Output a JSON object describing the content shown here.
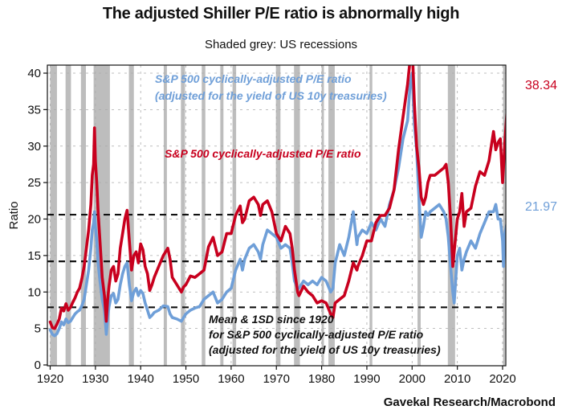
{
  "header": {
    "title": "The adjusted Shiller P/E ratio is abnormally high",
    "subtitle": "Shaded grey: US recessions"
  },
  "footer": {
    "source": "Gavekal Research/Macrobond"
  },
  "colors": {
    "red_series": "#c8001e",
    "blue_series": "#6f9fd8",
    "recession": "#bdbdbd",
    "mean_lines": "#111111"
  },
  "chart_data": {
    "type": "line",
    "title": "The adjusted Shiller P/E ratio is abnormally high",
    "subtitle": "Shaded grey: US recessions",
    "xlabel": "",
    "ylabel": "Ratio",
    "xlim": [
      1919.5,
      2022.8
    ],
    "ylim": [
      0,
      41
    ],
    "x_ticks": [
      1920,
      1930,
      1940,
      1950,
      1960,
      1970,
      1980,
      1990,
      2000,
      2010,
      2020
    ],
    "y_ticks": [
      0,
      5,
      10,
      15,
      20,
      25,
      30,
      35,
      40
    ],
    "grid": true,
    "recessions": [
      [
        1920.0,
        1921.5
      ],
      [
        1923.4,
        1924.6
      ],
      [
        1926.8,
        1927.9
      ],
      [
        1929.6,
        1933.2
      ],
      [
        1937.4,
        1938.5
      ],
      [
        1945.1,
        1945.8
      ],
      [
        1948.9,
        1949.8
      ],
      [
        1953.5,
        1954.3
      ],
      [
        1957.6,
        1958.3
      ],
      [
        1960.3,
        1961.1
      ],
      [
        1969.9,
        1970.9
      ],
      [
        1973.9,
        1975.2
      ],
      [
        1980.0,
        1980.5
      ],
      [
        1981.5,
        1982.9
      ],
      [
        1990.6,
        1991.2
      ],
      [
        2001.2,
        2001.9
      ],
      [
        2007.9,
        2009.5
      ],
      [
        2020.1,
        2020.4
      ]
    ],
    "reference_lines": {
      "label": "Mean & 1SD since 1920 for S&P 500 cyclically-adjusted P/E ratio (adjusted for the yield of US 10y treasuries)",
      "values": [
        7.9,
        14.2,
        20.6
      ]
    },
    "annotations": {
      "blue_label_line1": "S&P 500 cyclically-adjusted P/E ratio",
      "blue_label_line2": "(adjusted for the yield of US 10y treasuries)",
      "red_label": "S&P 500 cyclically-adjusted P/E ratio",
      "mean_label_line1": "Mean & 1SD since 1920",
      "mean_label_line2": "for S&P 500 cyclically-adjusted P/E ratio",
      "mean_label_line3": "(adjusted for the yield of US 10y treasuries)"
    },
    "series": [
      {
        "name": "S&P 500 cyclically-adjusted P/E ratio",
        "color": "#c8001e",
        "end_label": "38.34",
        "x": [
          1920.0,
          1920.5,
          1921.0,
          1921.5,
          1922.0,
          1922.5,
          1923.0,
          1923.5,
          1924.0,
          1924.5,
          1925.0,
          1925.5,
          1926.0,
          1926.5,
          1927.0,
          1927.5,
          1928.0,
          1928.5,
          1929.0,
          1929.3,
          1929.6,
          1929.8,
          1930.0,
          1930.3,
          1930.6,
          1931.0,
          1931.5,
          1932.0,
          1932.4,
          1932.7,
          1933.0,
          1933.5,
          1934.0,
          1934.5,
          1935.0,
          1935.5,
          1936.0,
          1936.5,
          1937.0,
          1937.5,
          1938.0,
          1938.5,
          1939.0,
          1939.5,
          1940.0,
          1940.5,
          1941.0,
          1941.5,
          1942.0,
          1942.5,
          1943.0,
          1944.0,
          1945.0,
          1946.0,
          1946.5,
          1947.0,
          1948.0,
          1949.0,
          1949.5,
          1950.0,
          1951.0,
          1952.0,
          1953.0,
          1954.0,
          1955.0,
          1956.0,
          1957.0,
          1958.0,
          1959.0,
          1960.0,
          1961.0,
          1962.0,
          1962.5,
          1963.0,
          1964.0,
          1965.0,
          1966.0,
          1966.5,
          1967.0,
          1968.0,
          1969.0,
          1970.0,
          1971.0,
          1972.0,
          1973.0,
          1973.5,
          1974.0,
          1974.7,
          1975.0,
          1976.0,
          1977.0,
          1978.0,
          1979.0,
          1980.0,
          1981.0,
          1982.0,
          1982.5,
          1983.0,
          1984.0,
          1985.0,
          1986.0,
          1987.0,
          1987.8,
          1988.0,
          1989.0,
          1990.0,
          1991.0,
          1992.0,
          1993.0,
          1994.0,
          1995.0,
          1996.0,
          1997.0,
          1998.0,
          1999.0,
          1999.5,
          2000.0,
          2000.5,
          2001.0,
          2001.5,
          2002.0,
          2002.5,
          2003.0,
          2003.5,
          2004.0,
          2005.0,
          2006.0,
          2007.0,
          2007.5,
          2008.0,
          2008.5,
          2009.0,
          2009.3,
          2010.0,
          2010.5,
          2011.0,
          2011.5,
          2012.0,
          2013.0,
          2014.0,
          2015.0,
          2016.0,
          2017.0,
          2018.0,
          2018.5,
          2019.0,
          2019.5,
          2020.0,
          2020.2,
          2020.5,
          2021.0,
          2021.5,
          2021.9
        ],
        "y": [
          5.9,
          5.1,
          5.0,
          5.6,
          6.3,
          7.8,
          7.4,
          8.4,
          7.5,
          7.9,
          8.6,
          9.2,
          10.0,
          10.5,
          11.8,
          13.5,
          16.0,
          18.5,
          22.0,
          26.0,
          27.5,
          32.5,
          28.0,
          25.0,
          21.0,
          17.0,
          12.0,
          9.5,
          6.0,
          9.0,
          10.8,
          13.0,
          13.5,
          11.5,
          12.5,
          16.0,
          18.0,
          20.0,
          21.2,
          17.0,
          13.0,
          15.0,
          15.5,
          14.0,
          16.6,
          15.8,
          13.5,
          12.5,
          10.2,
          11.0,
          12.0,
          13.5,
          15.0,
          16.0,
          14.5,
          12.0,
          11.0,
          10.0,
          10.7,
          11.0,
          12.2,
          12.0,
          12.5,
          13.0,
          16.2,
          17.5,
          15.0,
          15.5,
          18.0,
          18.0,
          20.5,
          21.8,
          19.5,
          20.0,
          22.5,
          23.0,
          22.0,
          20.5,
          22.0,
          22.5,
          21.0,
          18.0,
          17.0,
          19.0,
          18.0,
          16.0,
          13.0,
          10.0,
          9.5,
          10.8,
          10.0,
          9.5,
          8.5,
          8.8,
          8.5,
          7.0,
          6.5,
          8.5,
          9.0,
          9.5,
          11.5,
          14.0,
          13.0,
          13.5,
          15.0,
          17.0,
          17.0,
          19.5,
          20.5,
          20.5,
          21.5,
          24.0,
          29.5,
          34.0,
          38.5,
          41.5,
          44.0,
          36.0,
          30.0,
          27.0,
          23.0,
          22.0,
          23.0,
          25.0,
          26.0,
          26.0,
          26.5,
          27.0,
          27.5,
          25.0,
          20.0,
          13.5,
          15.5,
          20.0,
          21.0,
          23.5,
          19.0,
          21.0,
          21.5,
          24.5,
          26.5,
          26.0,
          28.0,
          32.0,
          29.5,
          30.5,
          31.0,
          25.0,
          27.0,
          30.5,
          35.0,
          37.0,
          38.3
        ]
      },
      {
        "name": "S&P 500 cyclically-adjusted P/E ratio (adjusted for the yield of US 10y treasuries)",
        "color": "#6f9fd8",
        "end_label": "21.97",
        "x": [
          1920.0,
          1920.5,
          1921.0,
          1921.5,
          1922.0,
          1922.5,
          1923.0,
          1923.5,
          1924.0,
          1924.5,
          1925.0,
          1925.5,
          1926.0,
          1926.5,
          1927.0,
          1927.5,
          1928.0,
          1928.5,
          1929.0,
          1929.3,
          1929.6,
          1929.8,
          1930.0,
          1930.3,
          1930.6,
          1931.0,
          1931.5,
          1932.0,
          1932.4,
          1932.7,
          1933.0,
          1933.5,
          1934.0,
          1934.5,
          1935.0,
          1935.5,
          1936.0,
          1936.5,
          1937.0,
          1937.5,
          1938.0,
          1938.5,
          1939.0,
          1939.5,
          1940.0,
          1940.5,
          1941.0,
          1941.5,
          1942.0,
          1942.5,
          1943.0,
          1944.0,
          1945.0,
          1946.0,
          1946.5,
          1947.0,
          1948.0,
          1949.0,
          1949.5,
          1950.0,
          1951.0,
          1952.0,
          1953.0,
          1954.0,
          1955.0,
          1956.0,
          1957.0,
          1958.0,
          1959.0,
          1960.0,
          1961.0,
          1962.0,
          1962.5,
          1963.0,
          1964.0,
          1965.0,
          1966.0,
          1966.5,
          1967.0,
          1968.0,
          1969.0,
          1970.0,
          1971.0,
          1972.0,
          1973.0,
          1973.5,
          1974.0,
          1974.7,
          1975.0,
          1976.0,
          1977.0,
          1978.0,
          1979.0,
          1980.0,
          1981.0,
          1982.0,
          1982.5,
          1983.0,
          1984.0,
          1985.0,
          1986.0,
          1987.0,
          1987.8,
          1988.0,
          1989.0,
          1990.0,
          1991.0,
          1992.0,
          1993.0,
          1994.0,
          1995.0,
          1996.0,
          1997.0,
          1998.0,
          1999.0,
          1999.5,
          2000.0,
          2000.5,
          2001.0,
          2001.5,
          2002.0,
          2002.5,
          2003.0,
          2003.5,
          2004.0,
          2005.0,
          2006.0,
          2007.0,
          2007.5,
          2008.0,
          2008.5,
          2009.0,
          2009.3,
          2010.0,
          2010.5,
          2011.0,
          2011.5,
          2012.0,
          2013.0,
          2014.0,
          2015.0,
          2016.0,
          2017.0,
          2018.0,
          2018.5,
          2019.0,
          2019.5,
          2020.0,
          2020.2,
          2020.5,
          2021.0,
          2021.5,
          2021.9
        ],
        "y": [
          4.8,
          4.2,
          4.0,
          4.3,
          5.0,
          5.9,
          5.5,
          6.3,
          5.8,
          6.0,
          6.5,
          7.0,
          7.3,
          7.5,
          8.1,
          9.0,
          11.0,
          13.0,
          16.0,
          18.5,
          19.5,
          21.0,
          19.0,
          17.0,
          14.0,
          11.5,
          9.0,
          7.5,
          4.2,
          6.5,
          8.0,
          9.5,
          9.8,
          8.5,
          9.0,
          11.0,
          12.5,
          13.5,
          14.0,
          11.0,
          8.8,
          10.0,
          10.5,
          9.5,
          10.2,
          9.8,
          8.5,
          7.5,
          6.5,
          6.8,
          7.2,
          7.5,
          8.1,
          8.0,
          7.0,
          6.5,
          6.3,
          6.0,
          6.5,
          7.0,
          7.5,
          7.8,
          8.0,
          9.0,
          9.5,
          10.0,
          8.5,
          9.0,
          10.0,
          10.5,
          13.0,
          14.5,
          13.0,
          14.5,
          16.0,
          16.5,
          15.5,
          14.5,
          16.5,
          18.5,
          18.0,
          17.5,
          16.0,
          16.5,
          16.0,
          14.0,
          11.5,
          10.5,
          10.5,
          11.5,
          11.0,
          11.5,
          11.0,
          12.0,
          11.5,
          10.0,
          10.5,
          14.0,
          16.5,
          15.0,
          17.5,
          21.0,
          16.5,
          17.5,
          18.5,
          18.0,
          19.5,
          18.5,
          20.0,
          19.0,
          22.0,
          24.0,
          27.0,
          31.0,
          33.5,
          38.0,
          40.0,
          33.0,
          29.5,
          23.0,
          17.5,
          19.0,
          21.0,
          20.5,
          21.0,
          21.5,
          22.0,
          21.0,
          20.0,
          17.5,
          13.5,
          10.0,
          8.5,
          15.0,
          16.0,
          13.0,
          14.5,
          15.5,
          17.0,
          16.0,
          18.0,
          19.5,
          21.0,
          21.0,
          22.0,
          20.0,
          20.0,
          17.0,
          13.5,
          18.0,
          19.5,
          21.5,
          22.0
        ]
      }
    ]
  }
}
